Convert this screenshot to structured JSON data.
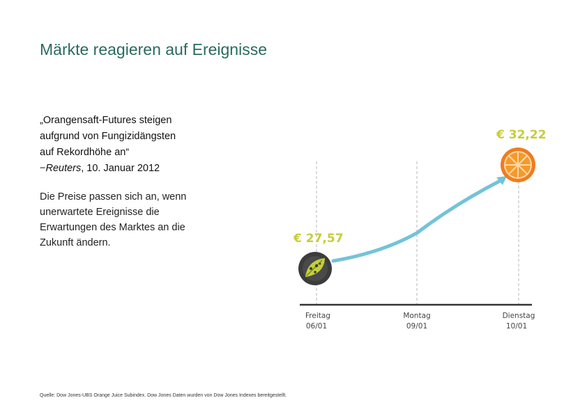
{
  "slide": {
    "title": "Märkte reagieren auf Ereignisse",
    "quote": {
      "lines": [
        "„Orangensaft-Futures steigen",
        "aufgrund von Fungizidängsten",
        "auf Rekordhöhe an“"
      ],
      "attribution_prefix": "−",
      "attribution_source": "Reuters",
      "attribution_date": ", 10. Januar 2012"
    },
    "body": "Die Preise passen sich an, wenn unerwartete Ereignisse die Erwartungen des Marktes an die Zukunft ändern.",
    "source_note": "Quelle: Dow Jones-UBS Orange Juice Subindex. Dow Jones Daten wurden von Dow Jones Indexes bereitgestellt."
  },
  "chart_data": {
    "type": "line",
    "categories": [
      {
        "day": "Freitag",
        "date": "06/01"
      },
      {
        "day": "Montag",
        "date": "09/01"
      },
      {
        "day": "Dienstag",
        "date": "10/01"
      }
    ],
    "start_label": "€ 27,57",
    "end_label": "€ 32,22",
    "values": [
      27.57,
      29.1,
      32.22
    ],
    "line_color": "#74c3d8",
    "price_label_color": "#c7cc3a",
    "start_icon": "leaf-fungus-icon",
    "end_icon": "orange-slice-icon"
  }
}
